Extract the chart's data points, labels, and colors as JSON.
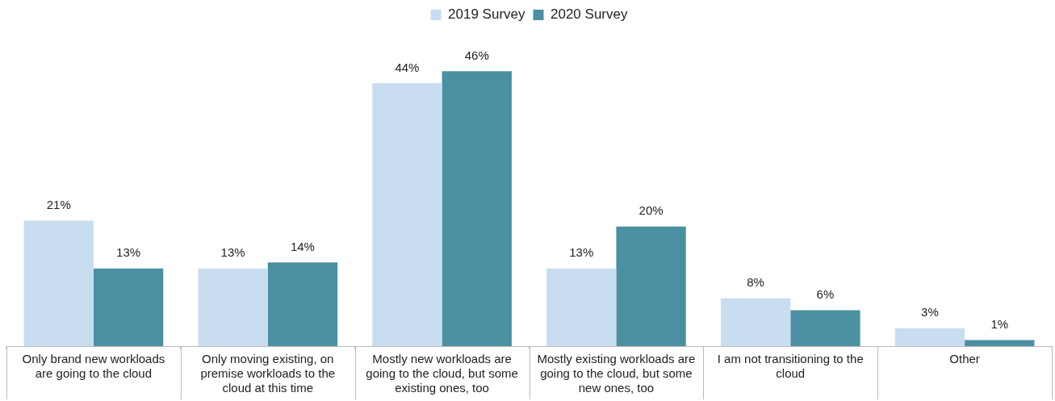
{
  "chart_data": {
    "type": "bar",
    "categories": [
      "Only brand new workloads are going to the cloud",
      "Only moving existing, on premise workloads to the cloud at this time",
      "Mostly new workloads are going to the cloud, but some existing ones, too",
      "Mostly existing workloads are going to the cloud, but some new ones, too",
      "I am not transitioning to the cloud",
      "Other"
    ],
    "series": [
      {
        "name": "2019 Survey",
        "color": "#c9ddf1",
        "values": [
          21,
          13,
          44,
          13,
          8,
          3
        ],
        "value_labels": [
          "21%",
          "13%",
          "44%",
          "13%",
          "8%",
          "3%"
        ]
      },
      {
        "name": "2020 Survey",
        "color": "#4b8fa2",
        "values": [
          13,
          14,
          46,
          20,
          6,
          1
        ],
        "value_labels": [
          "13%",
          "14%",
          "46%",
          "20%",
          "6%",
          "1%"
        ]
      }
    ],
    "legend": "top",
    "grid": false
  }
}
